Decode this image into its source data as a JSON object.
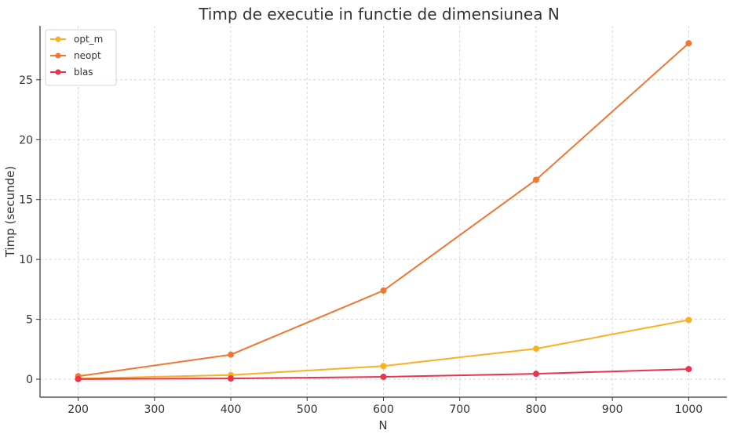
{
  "chart_data": {
    "type": "line",
    "title": "Timp de executie in functie de dimensiunea N",
    "xlabel": "N",
    "ylabel": "Timp (secunde)",
    "x": [
      200,
      400,
      600,
      800,
      1000
    ],
    "xlim": [
      150,
      1050
    ],
    "ylim": [
      -1.5,
      29.5
    ],
    "xticks": [
      200,
      300,
      400,
      500,
      600,
      700,
      800,
      900,
      1000
    ],
    "yticks": [
      0,
      5,
      10,
      15,
      20,
      25
    ],
    "grid": true,
    "legend_position": "top-left",
    "series": [
      {
        "name": "opt_m",
        "color": "#fbb021",
        "values": [
          0.05,
          0.35,
          1.1,
          2.55,
          4.95
        ]
      },
      {
        "name": "neopt",
        "color": "#f1762f",
        "values": [
          0.25,
          2.05,
          7.4,
          16.65,
          28.05
        ]
      },
      {
        "name": "blas",
        "color": "#e8344e",
        "values": [
          0.01,
          0.06,
          0.2,
          0.45,
          0.85
        ]
      }
    ]
  }
}
